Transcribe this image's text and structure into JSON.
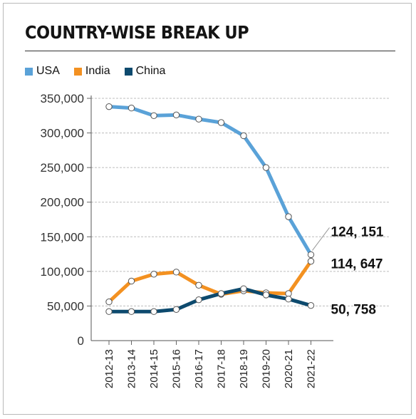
{
  "title": "COUNTRY-WISE BREAK UP",
  "colors": {
    "USA": "#5aa2d8",
    "India": "#f39121",
    "China": "#0d4a6e"
  },
  "chart_data": {
    "type": "line",
    "title": "COUNTRY-WISE BREAK UP",
    "xlabel": "",
    "ylabel": "",
    "categories": [
      "2012-13",
      "2013-14",
      "2014-15",
      "2015-16",
      "2016-17",
      "2017-18",
      "2018-19",
      "2019-20",
      "2020-21",
      "2021-22"
    ],
    "ylim": [
      0,
      350000
    ],
    "yticks": [
      0,
      50000,
      100000,
      150000,
      200000,
      250000,
      300000,
      350000
    ],
    "ytick_labels": [
      "0",
      "50,000",
      "100,000",
      "150,000",
      "200,000",
      "250,000",
      "300,000",
      "350,000"
    ],
    "grid": "horizontal dashed",
    "legend": "top-left",
    "series": [
      {
        "name": "USA",
        "color": "#5aa2d8",
        "values": [
          338000,
          336000,
          325000,
          326000,
          320000,
          315000,
          296000,
          250000,
          179000,
          124151
        ]
      },
      {
        "name": "India",
        "color": "#f39121",
        "values": [
          56000,
          86000,
          96000,
          99000,
          80000,
          67000,
          72000,
          69000,
          68000,
          114647
        ]
      },
      {
        "name": "China",
        "color": "#0d4a6e",
        "values": [
          42000,
          42000,
          42000,
          45000,
          59000,
          68000,
          75000,
          66000,
          60000,
          50758
        ]
      }
    ],
    "annotations": [
      {
        "series": "USA",
        "text": "124, 151"
      },
      {
        "series": "India",
        "text": "114, 647"
      },
      {
        "series": "China",
        "text": "50, 758"
      }
    ]
  }
}
